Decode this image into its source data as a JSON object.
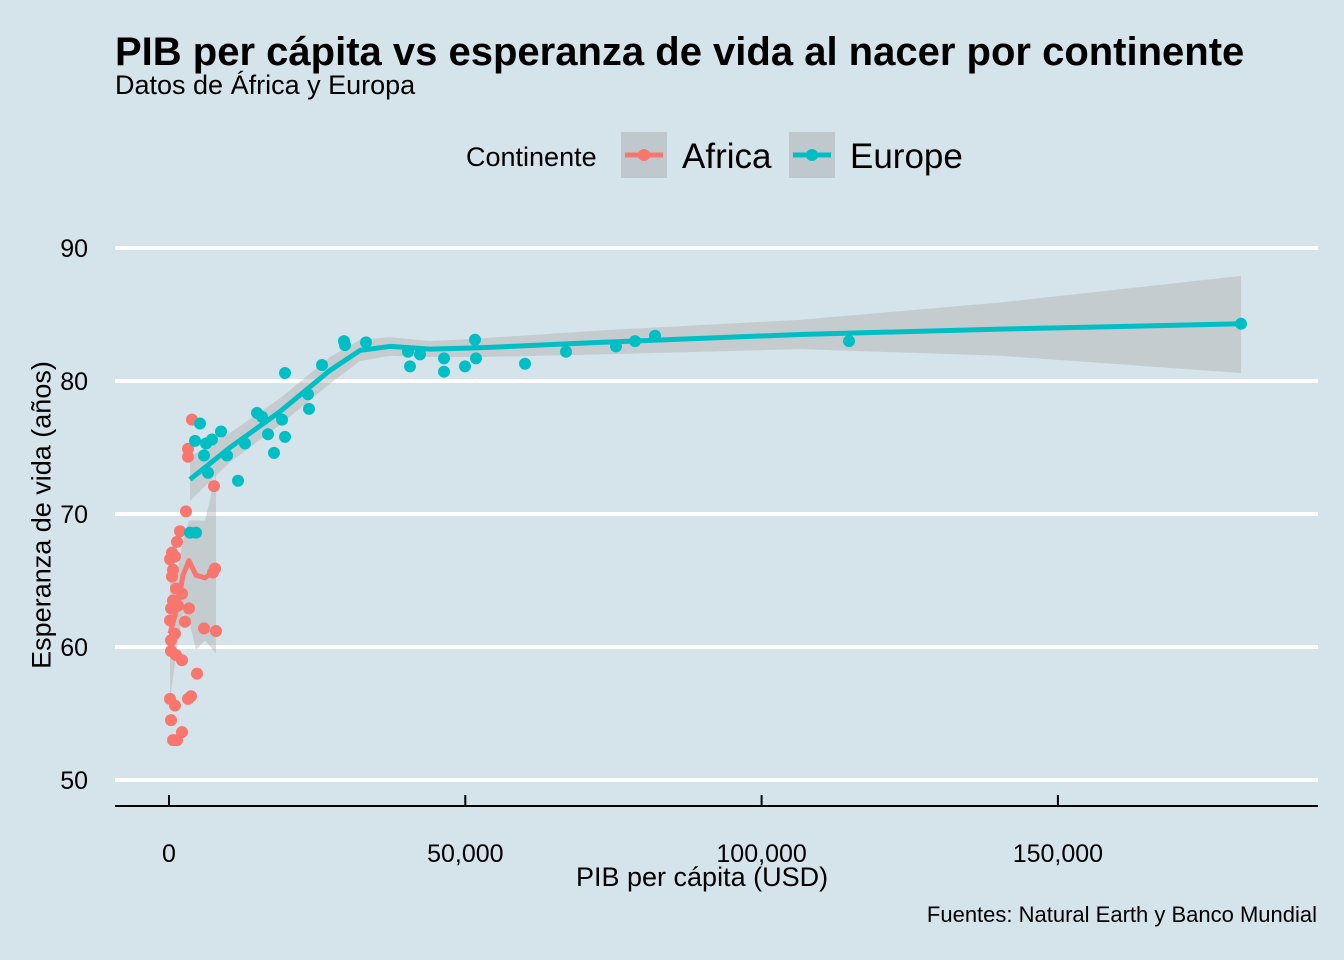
{
  "chart_data": {
    "type": "scatter",
    "title": "PIB per cápita vs esperanza de vida al nacer por continente",
    "subtitle": "Datos de África y Europa",
    "caption": "Fuentes: Natural Earth y Banco Mundial",
    "xlabel": "PIB per cápita  (USD)",
    "ylabel": "Esperanza de vida (años)",
    "xlim": [
      -9000,
      193000
    ],
    "ylim": [
      46,
      94
    ],
    "xticks": [
      0,
      50000,
      100000,
      150000
    ],
    "xtick_labels": [
      "0",
      "50,000",
      "100,000",
      "150,000"
    ],
    "yticks": [
      50,
      60,
      70,
      80,
      90
    ],
    "ytick_labels": [
      "50",
      "60",
      "70",
      "80",
      "90"
    ],
    "grid": "horizontal major",
    "legend": {
      "title": "Continente",
      "placement": "top"
    },
    "series": [
      {
        "name": "Africa",
        "color": "#f8766d",
        "points": [
          [
            3881,
            77.1
          ],
          [
            3206,
            74.9
          ],
          [
            3206,
            74.3
          ],
          [
            7594,
            72.1
          ],
          [
            2869,
            70.2
          ],
          [
            1856,
            68.7
          ],
          [
            1350,
            67.9
          ],
          [
            506,
            67.1
          ],
          [
            1013,
            66.8
          ],
          [
            169,
            66.6
          ],
          [
            675,
            65.8
          ],
          [
            506,
            65.3
          ],
          [
            7763,
            65.9
          ],
          [
            7425,
            65.6
          ],
          [
            1181,
            64.4
          ],
          [
            2194,
            64.0
          ],
          [
            675,
            63.5
          ],
          [
            1519,
            63.1
          ],
          [
            3375,
            62.9
          ],
          [
            338,
            62.9
          ],
          [
            169,
            62.0
          ],
          [
            2700,
            61.9
          ],
          [
            1013,
            61.0
          ],
          [
            5906,
            61.4
          ],
          [
            7931,
            61.2
          ],
          [
            338,
            60.5
          ],
          [
            338,
            59.7
          ],
          [
            1181,
            59.4
          ],
          [
            2194,
            59.0
          ],
          [
            4725,
            58.0
          ],
          [
            169,
            56.1
          ],
          [
            3713,
            56.3
          ],
          [
            3206,
            56.1
          ],
          [
            338,
            54.5
          ],
          [
            1013,
            55.6
          ],
          [
            2194,
            53.6
          ],
          [
            675,
            53.0
          ],
          [
            1350,
            53.0
          ]
        ],
        "smooth": [
          [
            169,
            61.0
          ],
          [
            1519,
            63.2
          ],
          [
            2363,
            65.4
          ],
          [
            3375,
            66.5
          ],
          [
            4556,
            65.4
          ],
          [
            6075,
            65.2
          ],
          [
            7931,
            65.8
          ]
        ],
        "smooth_ci": [
          [
            169,
            56.0,
            66.0
          ],
          [
            1519,
            60.5,
            66.0
          ],
          [
            2363,
            62.5,
            68.0
          ],
          [
            3375,
            62.0,
            69.5
          ],
          [
            4556,
            59.8,
            69.5
          ],
          [
            6075,
            60.5,
            69.5
          ],
          [
            7931,
            59.5,
            73.0
          ]
        ]
      },
      {
        "name": "Europe",
        "color": "#00bfc4",
        "points": [
          [
            29531,
            83.0
          ],
          [
            29700,
            82.7
          ],
          [
            33244,
            82.9
          ],
          [
            25819,
            81.2
          ],
          [
            19575,
            80.6
          ],
          [
            40331,
            82.2
          ],
          [
            40669,
            81.1
          ],
          [
            42356,
            82.0
          ],
          [
            46406,
            81.7
          ],
          [
            46406,
            80.7
          ],
          [
            49950,
            81.1
          ],
          [
            51638,
            83.1
          ],
          [
            51806,
            81.7
          ],
          [
            60075,
            81.3
          ],
          [
            66994,
            82.2
          ],
          [
            75431,
            82.6
          ],
          [
            78638,
            83.0
          ],
          [
            82013,
            83.4
          ],
          [
            114750,
            83.0
          ],
          [
            180900,
            84.3
          ],
          [
            23456,
            79.0
          ],
          [
            23625,
            77.9
          ],
          [
            19069,
            77.1
          ],
          [
            19575,
            75.8
          ],
          [
            16706,
            76.0
          ],
          [
            17719,
            74.6
          ],
          [
            14850,
            77.6
          ],
          [
            15694,
            77.3
          ],
          [
            12825,
            75.3
          ],
          [
            9788,
            74.4
          ],
          [
            11644,
            72.5
          ],
          [
            7256,
            75.6
          ],
          [
            6244,
            75.3
          ],
          [
            5231,
            76.8
          ],
          [
            4388,
            75.5
          ],
          [
            5906,
            74.4
          ],
          [
            6581,
            73.1
          ],
          [
            8775,
            76.2
          ],
          [
            3544,
            68.6
          ],
          [
            4556,
            68.6
          ]
        ],
        "smooth": [
          [
            3544,
            72.6
          ],
          [
            10294,
            75.0
          ],
          [
            18731,
            77.7
          ],
          [
            27169,
            80.8
          ],
          [
            32231,
            82.3
          ],
          [
            37294,
            82.6
          ],
          [
            44044,
            82.4
          ],
          [
            52481,
            82.5
          ],
          [
            72731,
            82.9
          ],
          [
            106481,
            83.5
          ],
          [
            140231,
            83.9
          ],
          [
            180900,
            84.3
          ]
        ],
        "smooth_ci": [
          [
            3544,
            71.0,
            74.3
          ],
          [
            10294,
            73.9,
            76.1
          ],
          [
            18731,
            76.7,
            78.7
          ],
          [
            27169,
            79.8,
            81.8
          ],
          [
            32231,
            81.5,
            83.1
          ],
          [
            37294,
            81.9,
            83.3
          ],
          [
            44044,
            81.8,
            83.0
          ],
          [
            52481,
            81.8,
            83.2
          ],
          [
            72731,
            82.0,
            83.8
          ],
          [
            106481,
            82.4,
            84.6
          ],
          [
            140231,
            81.9,
            85.9
          ],
          [
            180900,
            80.6,
            87.9
          ]
        ]
      }
    ]
  }
}
